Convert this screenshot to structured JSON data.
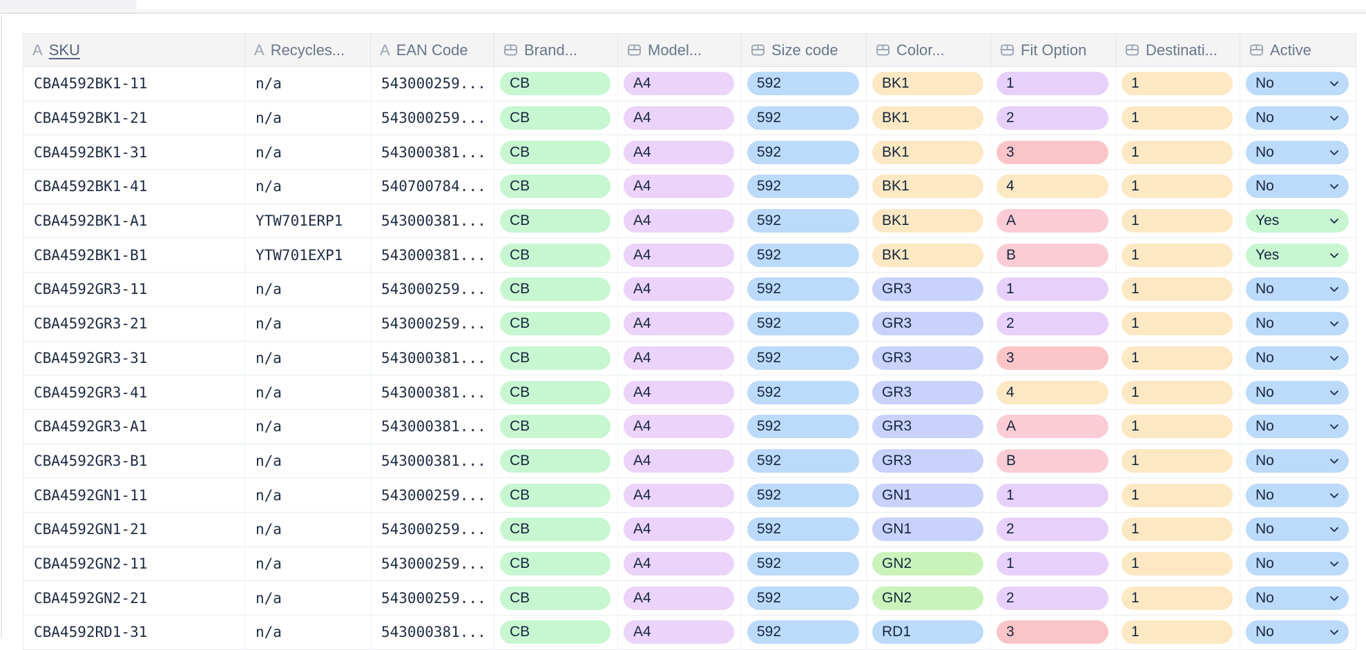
{
  "chrome": {
    "tab_color": "#f2f2f4",
    "strip_color": "#f6f6f7"
  },
  "table": {
    "columns": [
      {
        "label": "SKU",
        "icon": "text-icon",
        "sorted": true
      },
      {
        "label": "Recycles...",
        "icon": "text-icon",
        "sorted": false
      },
      {
        "label": "EAN Code",
        "icon": "text-icon",
        "sorted": false
      },
      {
        "label": "Brand...",
        "icon": "select-icon",
        "sorted": false
      },
      {
        "label": "Model...",
        "icon": "select-icon",
        "sorted": false
      },
      {
        "label": "Size code",
        "icon": "select-icon",
        "sorted": false
      },
      {
        "label": "Color...",
        "icon": "select-icon",
        "sorted": false
      },
      {
        "label": "Fit Option",
        "icon": "select-icon",
        "sorted": false
      },
      {
        "label": "Destinati...",
        "icon": "select-icon",
        "sorted": false
      },
      {
        "label": "Active",
        "icon": "select-icon",
        "sorted": false
      }
    ],
    "rows": [
      {
        "sku": "CBA4592BK1-11",
        "recycles": "n/a",
        "ean": "543000259...",
        "pills": {
          "brand": [
            "CB",
            "mint"
          ],
          "model": [
            "A4",
            "lilac"
          ],
          "size": [
            "592",
            "blue"
          ],
          "color": [
            "BK1",
            "peach"
          ],
          "fit": [
            "1",
            "lavender"
          ],
          "dest": [
            "1",
            "peach"
          ],
          "active": [
            "No",
            "blue"
          ]
        }
      },
      {
        "sku": "CBA4592BK1-21",
        "recycles": "n/a",
        "ean": "543000259...",
        "pills": {
          "brand": [
            "CB",
            "mint"
          ],
          "model": [
            "A4",
            "lilac"
          ],
          "size": [
            "592",
            "blue"
          ],
          "color": [
            "BK1",
            "peach"
          ],
          "fit": [
            "2",
            "lavender"
          ],
          "dest": [
            "1",
            "peach"
          ],
          "active": [
            "No",
            "blue"
          ]
        }
      },
      {
        "sku": "CBA4592BK1-31",
        "recycles": "n/a",
        "ean": "543000381...",
        "pills": {
          "brand": [
            "CB",
            "mint"
          ],
          "model": [
            "A4",
            "lilac"
          ],
          "size": [
            "592",
            "blue"
          ],
          "color": [
            "BK1",
            "peach"
          ],
          "fit": [
            "3",
            "red"
          ],
          "dest": [
            "1",
            "peach"
          ],
          "active": [
            "No",
            "blue"
          ]
        }
      },
      {
        "sku": "CBA4592BK1-41",
        "recycles": "n/a",
        "ean": "540700784...",
        "pills": {
          "brand": [
            "CB",
            "mint"
          ],
          "model": [
            "A4",
            "lilac"
          ],
          "size": [
            "592",
            "blue"
          ],
          "color": [
            "BK1",
            "peach"
          ],
          "fit": [
            "4",
            "peach"
          ],
          "dest": [
            "1",
            "peach"
          ],
          "active": [
            "No",
            "blue"
          ]
        }
      },
      {
        "sku": "CBA4592BK1-A1",
        "recycles": "YTW701ERP1",
        "ean": "543000381...",
        "pills": {
          "brand": [
            "CB",
            "mint"
          ],
          "model": [
            "A4",
            "lilac"
          ],
          "size": [
            "592",
            "blue"
          ],
          "color": [
            "BK1",
            "peach"
          ],
          "fit": [
            "A",
            "rose"
          ],
          "dest": [
            "1",
            "peach"
          ],
          "active": [
            "Yes",
            "mint"
          ]
        }
      },
      {
        "sku": "CBA4592BK1-B1",
        "recycles": "YTW701EXP1",
        "ean": "543000381...",
        "pills": {
          "brand": [
            "CB",
            "mint"
          ],
          "model": [
            "A4",
            "lilac"
          ],
          "size": [
            "592",
            "blue"
          ],
          "color": [
            "BK1",
            "peach"
          ],
          "fit": [
            "B",
            "rose"
          ],
          "dest": [
            "1",
            "peach"
          ],
          "active": [
            "Yes",
            "mint"
          ]
        }
      },
      {
        "sku": "CBA4592GR3-11",
        "recycles": "n/a",
        "ean": "543000259...",
        "pills": {
          "brand": [
            "CB",
            "mint"
          ],
          "model": [
            "A4",
            "lilac"
          ],
          "size": [
            "592",
            "blue"
          ],
          "color": [
            "GR3",
            "periwinkle"
          ],
          "fit": [
            "1",
            "lavender"
          ],
          "dest": [
            "1",
            "peach"
          ],
          "active": [
            "No",
            "blue"
          ]
        }
      },
      {
        "sku": "CBA4592GR3-21",
        "recycles": "n/a",
        "ean": "543000259...",
        "pills": {
          "brand": [
            "CB",
            "mint"
          ],
          "model": [
            "A4",
            "lilac"
          ],
          "size": [
            "592",
            "blue"
          ],
          "color": [
            "GR3",
            "periwinkle"
          ],
          "fit": [
            "2",
            "lavender"
          ],
          "dest": [
            "1",
            "peach"
          ],
          "active": [
            "No",
            "blue"
          ]
        }
      },
      {
        "sku": "CBA4592GR3-31",
        "recycles": "n/a",
        "ean": "543000381...",
        "pills": {
          "brand": [
            "CB",
            "mint"
          ],
          "model": [
            "A4",
            "lilac"
          ],
          "size": [
            "592",
            "blue"
          ],
          "color": [
            "GR3",
            "periwinkle"
          ],
          "fit": [
            "3",
            "red"
          ],
          "dest": [
            "1",
            "peach"
          ],
          "active": [
            "No",
            "blue"
          ]
        }
      },
      {
        "sku": "CBA4592GR3-41",
        "recycles": "n/a",
        "ean": "543000381...",
        "pills": {
          "brand": [
            "CB",
            "mint"
          ],
          "model": [
            "A4",
            "lilac"
          ],
          "size": [
            "592",
            "blue"
          ],
          "color": [
            "GR3",
            "periwinkle"
          ],
          "fit": [
            "4",
            "peach"
          ],
          "dest": [
            "1",
            "peach"
          ],
          "active": [
            "No",
            "blue"
          ]
        }
      },
      {
        "sku": "CBA4592GR3-A1",
        "recycles": "n/a",
        "ean": "543000381...",
        "pills": {
          "brand": [
            "CB",
            "mint"
          ],
          "model": [
            "A4",
            "lilac"
          ],
          "size": [
            "592",
            "blue"
          ],
          "color": [
            "GR3",
            "periwinkle"
          ],
          "fit": [
            "A",
            "rose"
          ],
          "dest": [
            "1",
            "peach"
          ],
          "active": [
            "No",
            "blue"
          ]
        }
      },
      {
        "sku": "CBA4592GR3-B1",
        "recycles": "n/a",
        "ean": "543000381...",
        "pills": {
          "brand": [
            "CB",
            "mint"
          ],
          "model": [
            "A4",
            "lilac"
          ],
          "size": [
            "592",
            "blue"
          ],
          "color": [
            "GR3",
            "periwinkle"
          ],
          "fit": [
            "B",
            "rose"
          ],
          "dest": [
            "1",
            "peach"
          ],
          "active": [
            "No",
            "blue"
          ]
        }
      },
      {
        "sku": "CBA4592GN1-11",
        "recycles": "n/a",
        "ean": "543000259...",
        "pills": {
          "brand": [
            "CB",
            "mint"
          ],
          "model": [
            "A4",
            "lilac"
          ],
          "size": [
            "592",
            "blue"
          ],
          "color": [
            "GN1",
            "periwinkle"
          ],
          "fit": [
            "1",
            "lavender"
          ],
          "dest": [
            "1",
            "peach"
          ],
          "active": [
            "No",
            "blue"
          ]
        }
      },
      {
        "sku": "CBA4592GN1-21",
        "recycles": "n/a",
        "ean": "543000259...",
        "pills": {
          "brand": [
            "CB",
            "mint"
          ],
          "model": [
            "A4",
            "lilac"
          ],
          "size": [
            "592",
            "blue"
          ],
          "color": [
            "GN1",
            "periwinkle"
          ],
          "fit": [
            "2",
            "lavender"
          ],
          "dest": [
            "1",
            "peach"
          ],
          "active": [
            "No",
            "blue"
          ]
        }
      },
      {
        "sku": "CBA4592GN2-11",
        "recycles": "n/a",
        "ean": "543000259...",
        "pills": {
          "brand": [
            "CB",
            "mint"
          ],
          "model": [
            "A4",
            "lilac"
          ],
          "size": [
            "592",
            "blue"
          ],
          "color": [
            "GN2",
            "grass"
          ],
          "fit": [
            "1",
            "lavender"
          ],
          "dest": [
            "1",
            "peach"
          ],
          "active": [
            "No",
            "blue"
          ]
        }
      },
      {
        "sku": "CBA4592GN2-21",
        "recycles": "n/a",
        "ean": "543000259...",
        "pills": {
          "brand": [
            "CB",
            "mint"
          ],
          "model": [
            "A4",
            "lilac"
          ],
          "size": [
            "592",
            "blue"
          ],
          "color": [
            "GN2",
            "grass"
          ],
          "fit": [
            "2",
            "lavender"
          ],
          "dest": [
            "1",
            "peach"
          ],
          "active": [
            "No",
            "blue"
          ]
        }
      },
      {
        "sku": "CBA4592RD1-31",
        "recycles": "n/a",
        "ean": "543000381...",
        "pills": {
          "brand": [
            "CB",
            "mint"
          ],
          "model": [
            "A4",
            "lilac"
          ],
          "size": [
            "592",
            "blue"
          ],
          "color": [
            "RD1",
            "blue"
          ],
          "fit": [
            "3",
            "red"
          ],
          "dest": [
            "1",
            "peach"
          ],
          "active": [
            "No",
            "blue"
          ]
        }
      }
    ]
  },
  "pill_colors": {
    "mint": "#c7f6d1",
    "lilac": "#ebd3f9",
    "blue": "#bcdaf9",
    "peach": "#fde8c4",
    "periwinkle": "#c8d2fa",
    "grass": "#c9f3bb",
    "lavender": "#e7d1fb",
    "red": "#fbc5c8",
    "rose": "#fbccd5"
  },
  "icon_colors": {
    "header_icon": "#9aa4b2",
    "chevron": "#24344e"
  }
}
